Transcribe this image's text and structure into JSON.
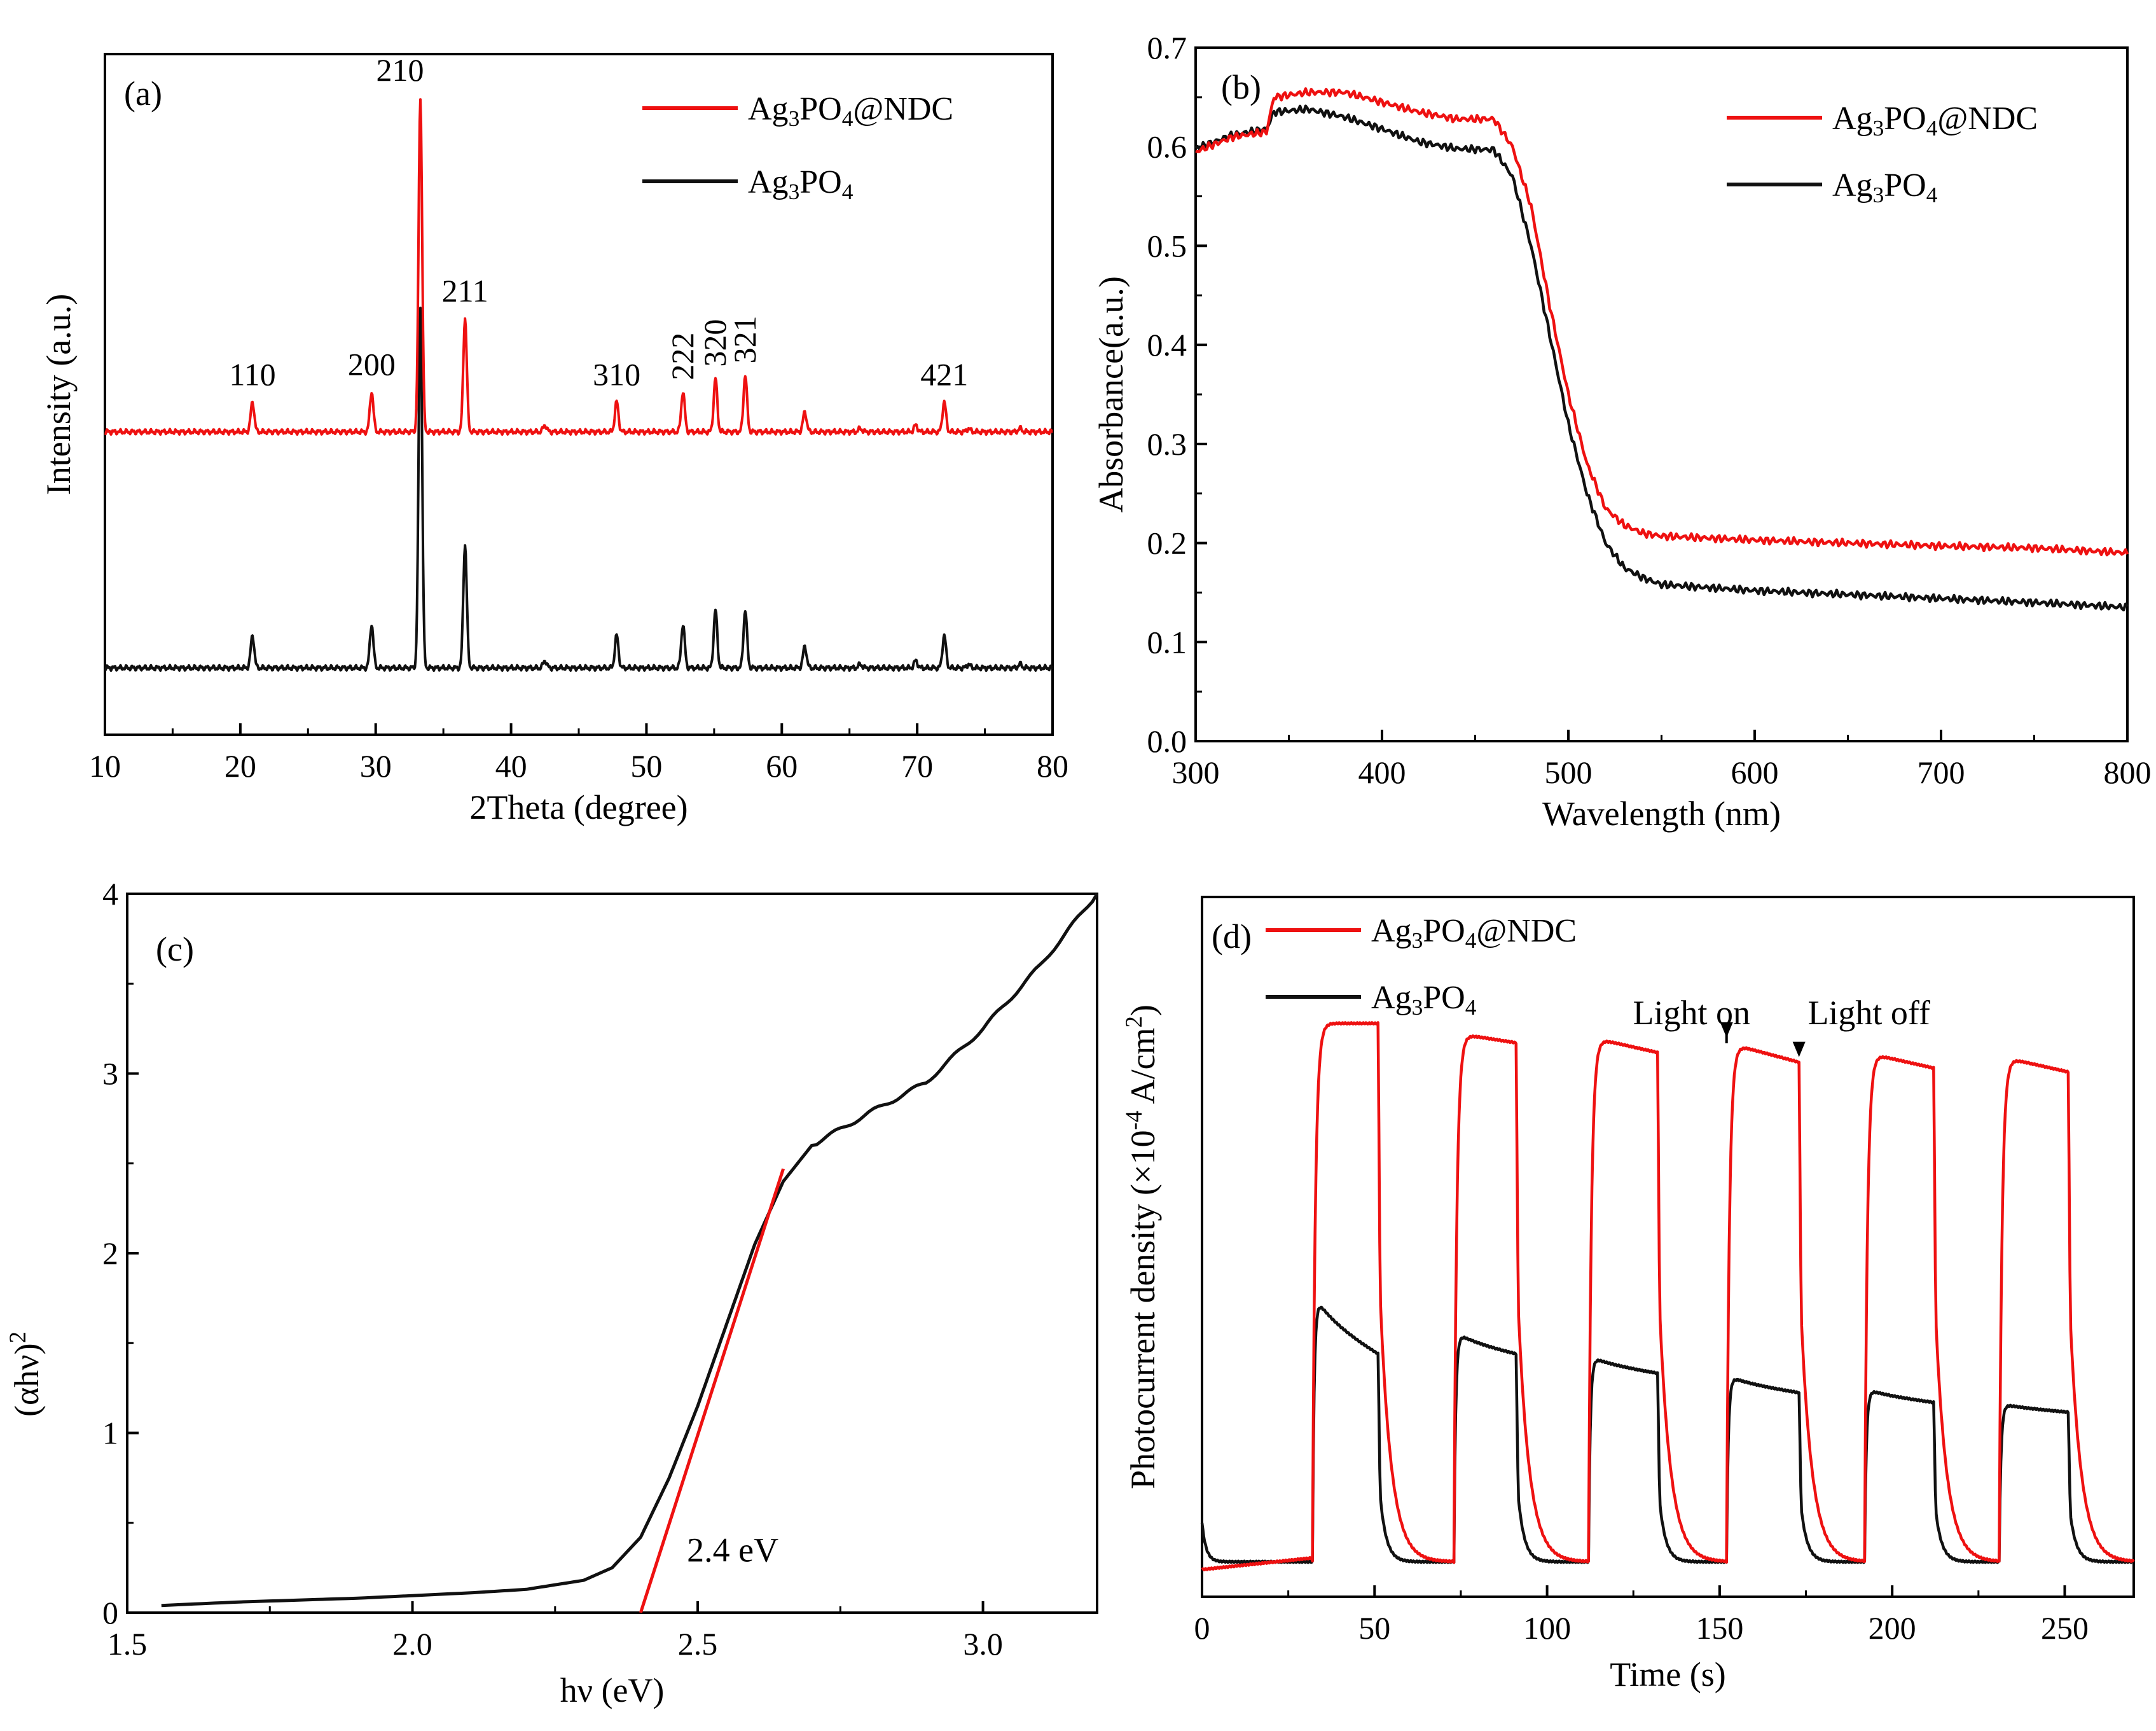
{
  "colors": {
    "red": "#ee1111",
    "black": "#111111"
  },
  "chart_data": [
    {
      "id": "a",
      "type": "line",
      "panel_label": "(a)",
      "xlabel": "2Theta (degree)",
      "ylabel": "Intensity (a.u.)",
      "xlim": [
        10,
        80
      ],
      "xticks": [
        10,
        20,
        30,
        40,
        50,
        60,
        70,
        80
      ],
      "yticks": [],
      "legend": [
        {
          "name": "Ag3PO4@NDC",
          "base": "Ag",
          "sub1": "3",
          "mid": "PO",
          "sub2": "4",
          "tail": "@NDC",
          "color": "red"
        },
        {
          "name": "Ag3PO4",
          "base": "Ag",
          "sub1": "3",
          "mid": "PO",
          "sub2": "4",
          "tail": "",
          "color": "black"
        }
      ],
      "peak_labels": [
        {
          "x": 20.9,
          "label": "110"
        },
        {
          "x": 29.7,
          "label": "200"
        },
        {
          "x": 33.3,
          "label": "210"
        },
        {
          "x": 36.6,
          "label": "211"
        },
        {
          "x": 47.8,
          "label": "310"
        },
        {
          "x": 52.7,
          "label": "222"
        },
        {
          "x": 55.1,
          "label": "320"
        },
        {
          "x": 57.3,
          "label": "321"
        },
        {
          "x": 72.0,
          "label": "421"
        }
      ],
      "peaks": [
        {
          "x": 20.9,
          "h_red": 0.09,
          "h_black": 0.09
        },
        {
          "x": 29.7,
          "h_red": 0.12,
          "h_black": 0.12
        },
        {
          "x": 33.3,
          "h_red": 1.0,
          "h_black": 1.0
        },
        {
          "x": 36.6,
          "h_red": 0.34,
          "h_black": 0.34
        },
        {
          "x": 42.5,
          "h_red": 0.02,
          "h_black": 0.02
        },
        {
          "x": 47.8,
          "h_red": 0.09,
          "h_black": 0.09
        },
        {
          "x": 52.7,
          "h_red": 0.12,
          "h_black": 0.12
        },
        {
          "x": 55.1,
          "h_red": 0.16,
          "h_black": 0.16
        },
        {
          "x": 57.3,
          "h_red": 0.17,
          "h_black": 0.16
        },
        {
          "x": 61.7,
          "h_red": 0.06,
          "h_black": 0.06
        },
        {
          "x": 65.8,
          "h_red": 0.01,
          "h_black": 0.01
        },
        {
          "x": 69.9,
          "h_red": 0.02,
          "h_black": 0.02
        },
        {
          "x": 72.0,
          "h_red": 0.09,
          "h_black": 0.09
        },
        {
          "x": 73.8,
          "h_red": 0.01,
          "h_black": 0.01
        },
        {
          "x": 77.6,
          "h_red": 0.01,
          "h_black": 0.01
        }
      ],
      "baseline_red": 0.62,
      "baseline_black": 0.02,
      "peak_scale_red": 0.85,
      "peak_scale_black": 0.92,
      "y_display": [
        -0.15,
        1.58
      ]
    },
    {
      "id": "b",
      "type": "line",
      "panel_label": "(b)",
      "xlabel": "Wavelength (nm)",
      "ylabel": "Absorbance(a.u.)",
      "xlim": [
        300,
        800
      ],
      "ylim": [
        0,
        0.7
      ],
      "xticks": [
        300,
        400,
        500,
        600,
        700,
        800
      ],
      "yticks": [
        0.0,
        0.1,
        0.2,
        0.3,
        0.4,
        0.5,
        0.6,
        0.7
      ],
      "ytick_labels": [
        "0.0",
        "0.1",
        "0.2",
        "0.3",
        "0.4",
        "0.5",
        "0.6",
        "0.7"
      ],
      "legend": [
        {
          "name": "Ag3PO4@NDC",
          "base": "Ag",
          "sub1": "3",
          "mid": "PO",
          "sub2": "4",
          "tail": "@NDC",
          "color": "red"
        },
        {
          "name": "Ag3PO4",
          "base": "Ag",
          "sub1": "3",
          "mid": "PO",
          "sub2": "4",
          "tail": "",
          "color": "black"
        }
      ],
      "series": [
        {
          "name": "Ag3PO4@NDC",
          "color": "red",
          "x": [
            300,
            320,
            338,
            342,
            360,
            380,
            400,
            420,
            440,
            460,
            470,
            480,
            490,
            500,
            510,
            520,
            530,
            540,
            550,
            600,
            650,
            700,
            750,
            800
          ],
          "y": [
            0.595,
            0.61,
            0.615,
            0.65,
            0.655,
            0.655,
            0.645,
            0.635,
            0.628,
            0.628,
            0.6,
            0.54,
            0.44,
            0.35,
            0.28,
            0.235,
            0.218,
            0.21,
            0.207,
            0.203,
            0.2,
            0.197,
            0.195,
            0.19
          ]
        },
        {
          "name": "Ag3PO4",
          "color": "black",
          "x": [
            300,
            320,
            338,
            342,
            360,
            380,
            400,
            420,
            440,
            460,
            470,
            480,
            490,
            500,
            510,
            520,
            530,
            540,
            550,
            600,
            650,
            700,
            750,
            800
          ],
          "y": [
            0.598,
            0.612,
            0.618,
            0.635,
            0.638,
            0.63,
            0.618,
            0.605,
            0.598,
            0.597,
            0.57,
            0.5,
            0.41,
            0.32,
            0.25,
            0.2,
            0.175,
            0.165,
            0.158,
            0.152,
            0.148,
            0.144,
            0.14,
            0.135
          ]
        }
      ]
    },
    {
      "id": "c",
      "type": "line",
      "panel_label": "(c)",
      "xlabel": "hν (eV)",
      "ylabel_base": "(αhν)",
      "ylabel_sup": "2",
      "xlim": [
        1.5,
        3.2
      ],
      "ylim": [
        0,
        4
      ],
      "xticks": [
        1.5,
        2.0,
        2.5,
        3.0
      ],
      "xtick_labels": [
        "1.5",
        "2.0",
        "2.5",
        "3.0"
      ],
      "yticks": [
        0,
        1,
        2,
        3,
        4
      ],
      "ytick_labels": [
        "0",
        "1",
        "2",
        "3",
        "4"
      ],
      "annotation": {
        "text": "2.4 eV",
        "x": 2.47,
        "y": 0.32
      },
      "series": [
        {
          "name": "curve",
          "color": "black",
          "x": [
            1.56,
            1.7,
            1.9,
            2.1,
            2.2,
            2.3,
            2.35,
            2.4,
            2.45,
            2.5,
            2.55,
            2.6,
            2.65,
            2.7,
            2.8,
            2.9,
            3.0,
            3.1,
            3.2
          ],
          "y": [
            0.04,
            0.06,
            0.08,
            0.11,
            0.13,
            0.18,
            0.25,
            0.42,
            0.75,
            1.15,
            1.6,
            2.05,
            2.4,
            2.6,
            2.78,
            2.95,
            3.25,
            3.6,
            4.0
          ]
        },
        {
          "name": "tangent",
          "color": "red",
          "x": [
            2.4,
            2.65
          ],
          "y": [
            0.0,
            2.47
          ]
        }
      ]
    },
    {
      "id": "d",
      "type": "line",
      "panel_label": "(d)",
      "xlabel": "Time (s)",
      "ylabel_base": "Photocurrent density (×10",
      "ylabel_exp": "-4",
      "ylabel_mid": " A/cm",
      "ylabel_exp2": "2",
      "ylabel_tail": ")",
      "xlim": [
        0,
        270
      ],
      "xticks": [
        0,
        50,
        100,
        150,
        200,
        250
      ],
      "yticks": [],
      "legend": [
        {
          "name": "Ag3PO4@NDC",
          "base": "Ag",
          "sub1": "3",
          "mid": "PO",
          "sub2": "4",
          "tail": "@NDC",
          "color": "red"
        },
        {
          "name": "Ag3PO4",
          "base": "Ag",
          "sub1": "3",
          "mid": "PO",
          "sub2": "4",
          "tail": "",
          "color": "black"
        }
      ],
      "annotations": [
        {
          "text": "Light on",
          "x": 152
        },
        {
          "text": "Light off",
          "x": 173
        }
      ],
      "cycles": [
        {
          "on": 32,
          "off": 51,
          "red_top": 2.95,
          "red_end": 2.95,
          "black_top": 1.6,
          "black_end": 1.25
        },
        {
          "on": 73,
          "off": 91,
          "red_top": 2.9,
          "red_end": 2.85,
          "black_top": 1.38,
          "black_end": 1.25
        },
        {
          "on": 112,
          "off": 132,
          "red_top": 2.88,
          "red_end": 2.8,
          "black_top": 1.25,
          "black_end": 1.15
        },
        {
          "on": 152,
          "off": 173,
          "red_top": 2.85,
          "red_end": 2.75,
          "black_top": 1.15,
          "black_end": 1.05
        },
        {
          "on": 192,
          "off": 212,
          "red_top": 2.8,
          "red_end": 2.72,
          "black_top": 1.08,
          "black_end": 1.0
        },
        {
          "on": 231,
          "off": 251,
          "red_top": 2.78,
          "red_end": 2.7,
          "black_top": 1.0,
          "black_end": 0.95
        }
      ],
      "dark_level": 0.18,
      "y_display": [
        0,
        3.6
      ]
    }
  ]
}
